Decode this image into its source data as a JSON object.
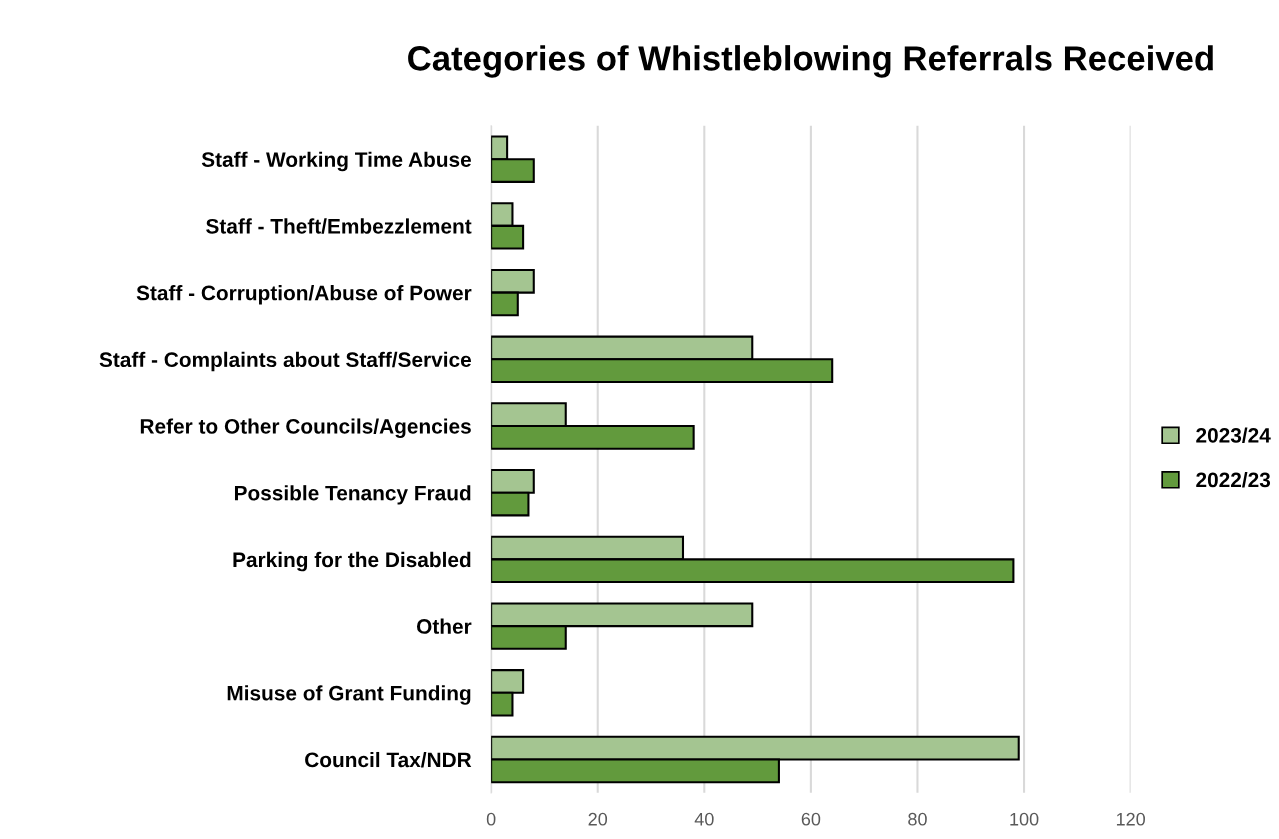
{
  "chart_data": {
    "type": "bar",
    "orientation": "horizontal",
    "title": "Categories of Whistleblowing Referrals Received",
    "categories": [
      "Staff - Working Time Abuse",
      "Staff - Theft/Embezzlement",
      "Staff - Corruption/Abuse of Power",
      "Staff - Complaints about Staff/Service",
      "Refer to Other Councils/Agencies",
      "Possible Tenancy Fraud",
      "Parking for the Disabled",
      "Other",
      "Misuse of Grant Funding",
      "Council Tax/NDR"
    ],
    "series": [
      {
        "name": "2023/24",
        "color": "#a4c591",
        "values": [
          3,
          4,
          8,
          49,
          14,
          8,
          36,
          49,
          6,
          99
        ]
      },
      {
        "name": "2022/23",
        "color": "#629a3d",
        "values": [
          8,
          6,
          5,
          64,
          38,
          7,
          98,
          14,
          4,
          54
        ]
      }
    ],
    "xlim": [
      0,
      120
    ],
    "xticks": [
      0,
      20,
      40,
      60,
      80,
      100,
      120
    ],
    "grid": "x",
    "legend": "right"
  }
}
